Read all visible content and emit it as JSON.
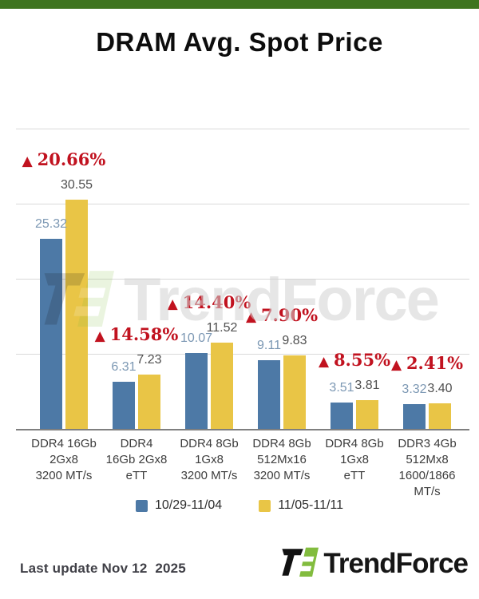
{
  "title": "DRAM Avg. Spot Price",
  "chart_data": {
    "type": "bar",
    "title": "DRAM Avg. Spot Price",
    "categories": [
      [
        "DDR4 16Gb",
        "2Gx8",
        "3200 MT/s"
      ],
      [
        "DDR4",
        "16Gb 2Gx8",
        "eTT"
      ],
      [
        "DDR4 8Gb",
        "1Gx8",
        "3200 MT/s"
      ],
      [
        "DDR4 8Gb",
        "512Mx16",
        "3200 MT/s"
      ],
      [
        "DDR4 8Gb",
        "1Gx8",
        "eTT"
      ],
      [
        "DDR3 4Gb",
        "512Mx8",
        "1600/1866",
        "MT/s"
      ]
    ],
    "series": [
      {
        "name": "10/29-11/04",
        "color": "#4d79a6",
        "values": [
          25.32,
          6.31,
          10.07,
          9.11,
          3.51,
          3.32
        ],
        "labels": [
          "25.32",
          "6.31",
          "10.07",
          "9.11",
          "3.51",
          "3.32"
        ],
        "label_color": "#7b97b3"
      },
      {
        "name": "11/05-11/11",
        "color": "#e9c546",
        "values": [
          30.55,
          7.23,
          11.52,
          9.83,
          3.81,
          3.4
        ],
        "labels": [
          "30.55",
          "7.23",
          "11.52",
          "9.83",
          "3.81",
          "3.40"
        ],
        "label_color": "#4f4f4f"
      }
    ],
    "change_marker": "▲",
    "changes": [
      "20.66%",
      "14.58%",
      "14.40%",
      "7.90%",
      "8.55%",
      "2.41%"
    ],
    "change_color": "#c1121f",
    "ylim": [
      0,
      42
    ],
    "gridline_values": [
      10,
      20,
      30,
      40
    ],
    "grid": true,
    "legend_position": "bottom"
  },
  "watermark": {
    "text": "TrendForce"
  },
  "footer": {
    "last_update": "Last update Nov 12  2025",
    "brand": "TrendForce"
  },
  "theme": {
    "top_bar": "#3e741f",
    "grid": "#d9d9d9",
    "axis": "#7f7f7f",
    "logo_green": "#82bc3e",
    "logo_black": "#111111"
  }
}
